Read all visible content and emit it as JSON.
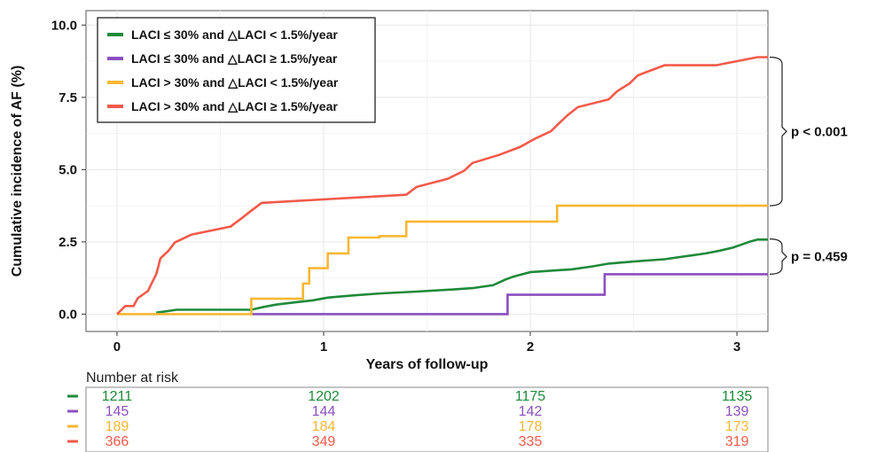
{
  "chart_data": {
    "type": "line",
    "xlabel": "Years of follow-up",
    "ylabel": "Cumulative incidence of AF (%)",
    "xlim": [
      -0.15,
      3.15
    ],
    "ylim": [
      -0.6,
      10.5
    ],
    "x_ticks": [
      0,
      1,
      2,
      3
    ],
    "y_ticks": [
      0.0,
      2.5,
      5.0,
      7.5,
      10.0
    ],
    "x_tick_labels": [
      "0",
      "1",
      "2",
      "3"
    ],
    "y_tick_labels": [
      "0.0",
      "2.5",
      "5.0",
      "7.5",
      "10.0"
    ],
    "legend_position": "top-left",
    "series": [
      {
        "name": "LACI ≤ 30% and △LACI < 1.5%/year",
        "color": "#1f8a3a",
        "points": [
          [
            0.19,
            0.05
          ],
          [
            0.29,
            0.15
          ],
          [
            0.65,
            0.15
          ],
          [
            0.71,
            0.25
          ],
          [
            0.77,
            0.33
          ],
          [
            0.85,
            0.4
          ],
          [
            0.95,
            0.48
          ],
          [
            1.02,
            0.57
          ],
          [
            1.15,
            0.65
          ],
          [
            1.28,
            0.72
          ],
          [
            1.45,
            0.78
          ],
          [
            1.62,
            0.85
          ],
          [
            1.72,
            0.9
          ],
          [
            1.82,
            1.0
          ],
          [
            1.85,
            1.1
          ],
          [
            1.88,
            1.2
          ],
          [
            1.92,
            1.3
          ],
          [
            2.0,
            1.45
          ],
          [
            2.2,
            1.55
          ],
          [
            2.3,
            1.65
          ],
          [
            2.38,
            1.75
          ],
          [
            2.5,
            1.82
          ],
          [
            2.65,
            1.9
          ],
          [
            2.75,
            2.0
          ],
          [
            2.85,
            2.1
          ],
          [
            2.92,
            2.2
          ],
          [
            2.98,
            2.3
          ],
          [
            3.02,
            2.4
          ],
          [
            3.06,
            2.5
          ],
          [
            3.1,
            2.58
          ],
          [
            3.15,
            2.58
          ]
        ]
      },
      {
        "name": "LACI ≤ 30% and △LACI ≥ 1.5%/year",
        "color": "#8a4fc0",
        "points": [
          [
            0.65,
            0.0
          ],
          [
            1.89,
            0.0
          ],
          [
            1.89,
            0.67
          ],
          [
            2.36,
            0.67
          ],
          [
            2.36,
            1.38
          ],
          [
            3.15,
            1.38
          ]
        ]
      },
      {
        "name": "LACI > 30% and △LACI < 1.5%/year",
        "color": "#f7b733",
        "points": [
          [
            0.0,
            0.0
          ],
          [
            0.65,
            0.0
          ],
          [
            0.65,
            0.53
          ],
          [
            0.9,
            0.53
          ],
          [
            0.9,
            1.06
          ],
          [
            0.93,
            1.06
          ],
          [
            0.93,
            1.59
          ],
          [
            1.02,
            1.59
          ],
          [
            1.02,
            2.1
          ],
          [
            1.12,
            2.1
          ],
          [
            1.12,
            2.65
          ],
          [
            1.25,
            2.65
          ],
          [
            1.25,
            2.65
          ],
          [
            1.27,
            2.65
          ],
          [
            1.27,
            2.7
          ],
          [
            1.4,
            2.7
          ],
          [
            1.4,
            3.2
          ],
          [
            2.13,
            3.2
          ],
          [
            2.13,
            3.75
          ],
          [
            3.15,
            3.75
          ]
        ]
      },
      {
        "name": "LACI > 30% and △LACI ≥ 1.5%/year",
        "color": "#f25a4a",
        "points": [
          [
            0.0,
            0.0
          ],
          [
            0.04,
            0.28
          ],
          [
            0.08,
            0.28
          ],
          [
            0.1,
            0.55
          ],
          [
            0.15,
            0.8
          ],
          [
            0.17,
            1.1
          ],
          [
            0.19,
            1.38
          ],
          [
            0.2,
            1.65
          ],
          [
            0.21,
            1.93
          ],
          [
            0.25,
            2.2
          ],
          [
            0.28,
            2.48
          ],
          [
            0.36,
            2.75
          ],
          [
            0.55,
            3.03
          ],
          [
            0.6,
            3.3
          ],
          [
            0.65,
            3.58
          ],
          [
            0.7,
            3.85
          ],
          [
            1.4,
            4.13
          ],
          [
            1.45,
            4.4
          ],
          [
            1.6,
            4.68
          ],
          [
            1.68,
            4.96
          ],
          [
            1.72,
            5.23
          ],
          [
            1.85,
            5.51
          ],
          [
            1.95,
            5.78
          ],
          [
            2.02,
            6.06
          ],
          [
            2.1,
            6.33
          ],
          [
            2.14,
            6.61
          ],
          [
            2.18,
            6.88
          ],
          [
            2.23,
            7.16
          ],
          [
            2.38,
            7.43
          ],
          [
            2.42,
            7.71
          ],
          [
            2.48,
            7.98
          ],
          [
            2.52,
            8.26
          ],
          [
            2.55,
            8.34
          ],
          [
            2.65,
            8.61
          ],
          [
            2.9,
            8.61
          ],
          [
            3.1,
            8.89
          ],
          [
            3.15,
            8.89
          ]
        ]
      }
    ],
    "annotations": [
      {
        "text": "p < 0.001",
        "between": [
          "LACI > 30% and △LACI ≥ 1.5%/year",
          "LACI > 30% and △LACI < 1.5%/year"
        ],
        "y_range": [
          3.75,
          8.89
        ]
      },
      {
        "text": "p = 0.459",
        "between": [
          "LACI ≤ 30% and △LACI < 1.5%/year",
          "LACI ≤ 30% and △LACI ≥ 1.5%/year"
        ],
        "y_range": [
          1.38,
          2.6
        ]
      }
    ],
    "risk_table": {
      "title": "Number at risk",
      "timepoints": [
        0,
        1,
        2,
        3
      ],
      "rows": [
        {
          "series": "LACI ≤ 30% and △LACI < 1.5%/year",
          "color": "#1f8a3a",
          "values": [
            "1211",
            "1202",
            "1175",
            "1135"
          ]
        },
        {
          "series": "LACI ≤ 30% and △LACI ≥ 1.5%/year",
          "color": "#8a4fc0",
          "values": [
            "145",
            "144",
            "142",
            "139"
          ]
        },
        {
          "series": "LACI > 30% and △LACI < 1.5%/year",
          "color": "#f7b733",
          "values": [
            "189",
            "184",
            "178",
            "173"
          ]
        },
        {
          "series": "LACI > 30% and △LACI ≥ 1.5%/year",
          "color": "#f25a4a",
          "values": [
            "366",
            "349",
            "335",
            "319"
          ]
        }
      ]
    }
  }
}
